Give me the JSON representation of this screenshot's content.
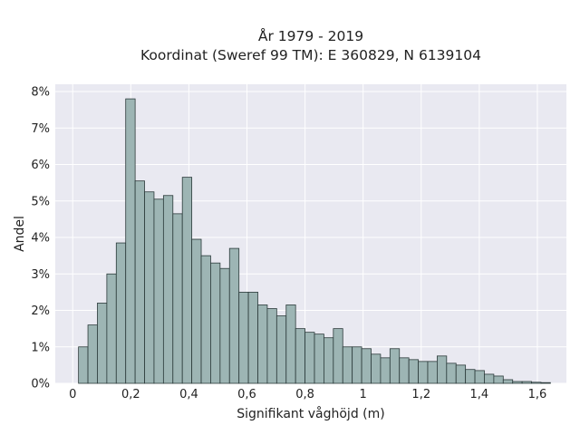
{
  "chart_data": {
    "type": "bar",
    "title_line1": "År 1979 - 2019",
    "title_line2": "Koordinat (Sweref 99 TM): E 360829, N 6139104",
    "xlabel": "Signifikant våghöjd (m)",
    "ylabel": "Andel",
    "xlim": [
      -0.06,
      1.7
    ],
    "ylim": [
      0,
      8.2
    ],
    "x_ticks": [
      0,
      0.2,
      0.4,
      0.6,
      0.8,
      1.0,
      1.2,
      1.4,
      1.6
    ],
    "x_tick_labels": [
      "0",
      "0,2",
      "0,4",
      "0,6",
      "0,8",
      "1",
      "1,2",
      "1,4",
      "1,6"
    ],
    "y_ticks": [
      0,
      1,
      2,
      3,
      4,
      5,
      6,
      7,
      8
    ],
    "y_tick_labels": [
      "0%",
      "1%",
      "2%",
      "3%",
      "4%",
      "5%",
      "6%",
      "7%",
      "8%"
    ],
    "grid": true,
    "bin_start": 0.02,
    "bin_width": 0.0325,
    "values": [
      1.0,
      1.6,
      2.2,
      3.0,
      3.85,
      7.8,
      5.55,
      5.25,
      5.05,
      5.15,
      4.65,
      5.65,
      3.95,
      3.5,
      3.3,
      3.15,
      3.7,
      2.5,
      2.5,
      2.15,
      2.05,
      1.85,
      2.15,
      1.5,
      1.4,
      1.35,
      1.25,
      1.5,
      1.0,
      1.0,
      0.95,
      0.8,
      0.7,
      0.95,
      0.7,
      0.65,
      0.6,
      0.6,
      0.75,
      0.55,
      0.5,
      0.38,
      0.35,
      0.25,
      0.2,
      0.1,
      0.05,
      0.05,
      0.03,
      0.02
    ]
  }
}
